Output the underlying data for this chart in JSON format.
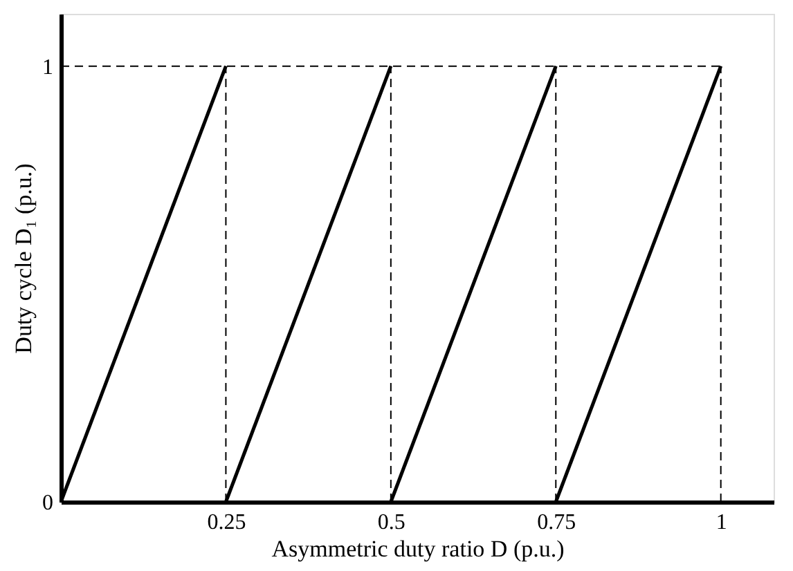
{
  "chart_data": {
    "type": "line",
    "xlabel": "Asymmetric duty ratio D (p.u.)",
    "ylabel": "Duty cycle D₁ (p.u.)",
    "series": [
      {
        "color": "#000000",
        "x": [
          0,
          0.25
        ],
        "values": [
          0,
          1
        ]
      },
      {
        "color": "#000000",
        "x": [
          0.25,
          0.5
        ],
        "values": [
          0,
          1
        ]
      },
      {
        "color": "#000000",
        "x": [
          0.5,
          0.75
        ],
        "values": [
          0,
          1
        ]
      },
      {
        "color": "#000000",
        "x": [
          0.75,
          1
        ],
        "values": [
          0,
          1
        ]
      }
    ],
    "xlim": [
      0,
      1.08
    ],
    "ylim": [
      0,
      1.12
    ],
    "xticks": [
      0.25,
      0.5,
      0.75,
      1
    ],
    "yticks": [
      0,
      1
    ],
    "ref_lines": [
      {
        "axis": "x",
        "value": 0.25,
        "line_style": "dashed"
      },
      {
        "axis": "x",
        "value": 0.5,
        "line_style": "dashed"
      },
      {
        "axis": "x",
        "value": 0.75,
        "line_style": "dashed"
      },
      {
        "axis": "x",
        "value": 1,
        "line_style": "dashed"
      },
      {
        "axis": "y",
        "value": 1,
        "line_style": "dashed"
      }
    ],
    "grid": false,
    "marker": "none",
    "line_style": "solid"
  }
}
